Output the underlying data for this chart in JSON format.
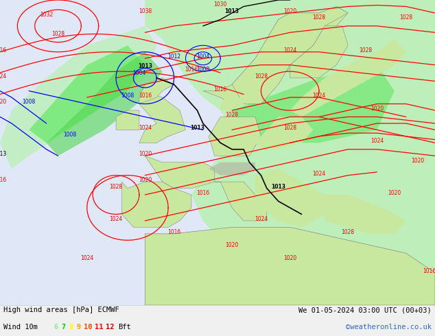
{
  "title_left": "High wind areas [hPa] ECMWF",
  "title_right": "We 01-05-2024 03:00 UTC (00+03)",
  "subtitle_left": "Wind 10m",
  "subtitle_right": "©weatheronline.co.uk",
  "legend_nums": [
    "6",
    "7",
    "8",
    "9",
    "10",
    "11",
    "12"
  ],
  "legend_colors": [
    "#90ee90",
    "#00cc00",
    "#ffff00",
    "#ffa500",
    "#ff4500",
    "#ff0000",
    "#cc0000"
  ],
  "bg_color": "#f0f0f0",
  "land_color": "#c8e8a0",
  "sea_color": "#ddeeff",
  "mountain_color": "#aaaaaa",
  "wind_light_color": "#b8f0b0",
  "wind_med_color": "#70e870",
  "wind_strong_color": "#00cc00",
  "isobar_red": "#ff0000",
  "isobar_blue": "#0000ff",
  "isobar_black": "#000000",
  "bottom_bar_color": "#ffffff",
  "bottom_text_color": "#000000",
  "copyright_color": "#3366cc",
  "fig_width": 6.34,
  "fig_height": 4.9,
  "dpi": 100
}
